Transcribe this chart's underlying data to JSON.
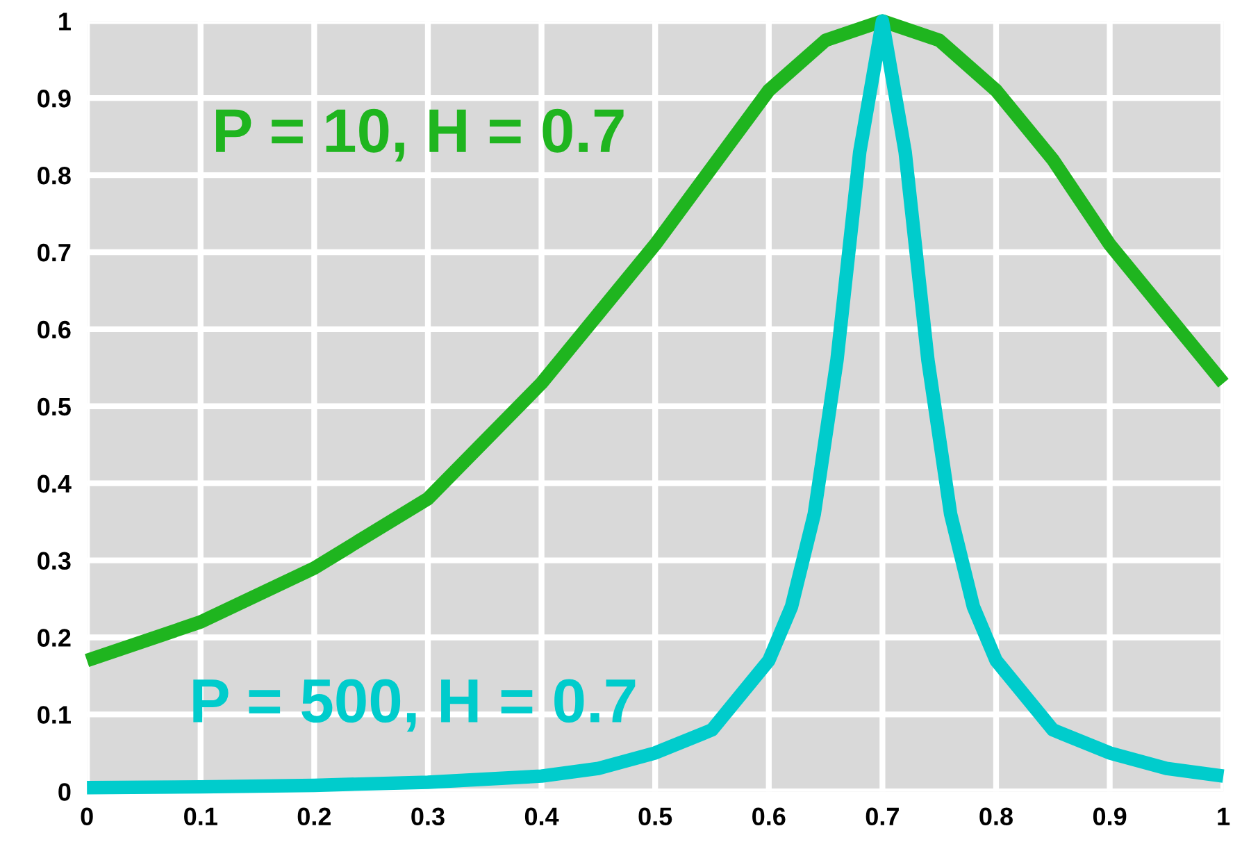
{
  "chart_data": {
    "type": "line",
    "xlim": [
      0,
      1
    ],
    "ylim": [
      0,
      1
    ],
    "xticks": [
      0,
      0.1,
      0.2,
      0.3,
      0.4,
      0.5,
      0.6,
      0.7,
      0.8,
      0.9,
      1
    ],
    "yticks": [
      0,
      0.1,
      0.2,
      0.3,
      0.4,
      0.5,
      0.6,
      0.7,
      0.8,
      0.9,
      1
    ],
    "grid": true,
    "legend": false,
    "marker": "none",
    "line_style": "solid",
    "series": [
      {
        "name": "P = 10, H = 0.7",
        "color": "#1fb51f",
        "x": [
          0,
          0.1,
          0.2,
          0.3,
          0.4,
          0.45,
          0.5,
          0.55,
          0.6,
          0.65,
          0.7,
          0.75,
          0.8,
          0.85,
          0.9,
          0.95,
          1
        ],
        "values": [
          0.17,
          0.22,
          0.29,
          0.38,
          0.53,
          0.62,
          0.71,
          0.81,
          0.91,
          0.975,
          1.0,
          0.975,
          0.91,
          0.82,
          0.71,
          0.62,
          0.53
        ]
      },
      {
        "name": "P = 500, H = 0.7",
        "color": "#00cccc",
        "x": [
          0,
          0.1,
          0.2,
          0.3,
          0.4,
          0.45,
          0.5,
          0.55,
          0.6,
          0.62,
          0.64,
          0.66,
          0.68,
          0.7,
          0.72,
          0.74,
          0.76,
          0.78,
          0.8,
          0.85,
          0.9,
          0.95,
          1
        ],
        "values": [
          0.005,
          0.006,
          0.008,
          0.012,
          0.02,
          0.03,
          0.05,
          0.08,
          0.17,
          0.24,
          0.36,
          0.56,
          0.83,
          1.0,
          0.83,
          0.56,
          0.36,
          0.24,
          0.17,
          0.08,
          0.05,
          0.03,
          0.02
        ]
      }
    ]
  }
}
